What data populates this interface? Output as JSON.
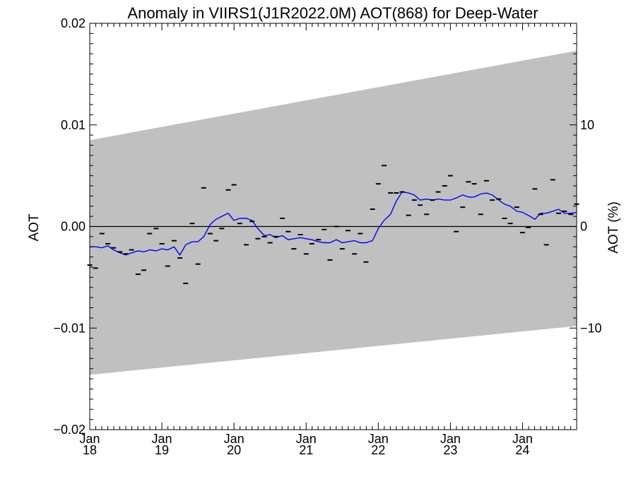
{
  "chart_data": {
    "type": "line",
    "title": "Anomaly in VIIRS1(J1R2022.0M) AOT(868) for Deep-Water",
    "ylabel": "AOT",
    "y2label": "AOT (%)",
    "xlim": [
      2018.0,
      2024.75
    ],
    "ylim": [
      -0.02,
      0.02
    ],
    "y2lim": [
      -20,
      20
    ],
    "yticks": [
      {
        "v": 0.02,
        "label": "0.02"
      },
      {
        "v": 0.01,
        "label": "0.01"
      },
      {
        "v": 0.0,
        "label": "0.00"
      },
      {
        "v": -0.01,
        "label": "−0.01"
      },
      {
        "v": -0.02,
        "label": "−0.02"
      }
    ],
    "y2ticks": [
      {
        "v": 10,
        "label": "10"
      },
      {
        "v": 0,
        "label": "0"
      },
      {
        "v": -10,
        "label": "−10"
      }
    ],
    "xticks": [
      {
        "x": 2018,
        "month": "Jan",
        "year": "18"
      },
      {
        "x": 2019,
        "month": "Jan",
        "year": "19"
      },
      {
        "x": 2020,
        "month": "Jan",
        "year": "20"
      },
      {
        "x": 2021,
        "month": "Jan",
        "year": "21"
      },
      {
        "x": 2022,
        "month": "Jan",
        "year": "22"
      },
      {
        "x": 2023,
        "month": "Jan",
        "year": "23"
      },
      {
        "x": 2024,
        "month": "Jan",
        "year": "24"
      }
    ],
    "band": {
      "x": [
        2018.0,
        2024.75
      ],
      "upper": [
        0.0085,
        0.0173
      ],
      "lower": [
        -0.0146,
        -0.0098
      ],
      "color": "#c0c0c0"
    },
    "zero_line": 0,
    "monthly_anomaly": {
      "color": "#000000",
      "x": [
        2018.0,
        2018.08,
        2018.17,
        2018.25,
        2018.33,
        2018.42,
        2018.5,
        2018.58,
        2018.67,
        2018.75,
        2018.83,
        2018.92,
        2019.0,
        2019.08,
        2019.17,
        2019.25,
        2019.33,
        2019.42,
        2019.5,
        2019.58,
        2019.67,
        2019.75,
        2019.83,
        2019.92,
        2020.0,
        2020.08,
        2020.17,
        2020.25,
        2020.33,
        2020.42,
        2020.5,
        2020.58,
        2020.67,
        2020.75,
        2020.83,
        2020.92,
        2021.0,
        2021.08,
        2021.17,
        2021.25,
        2021.33,
        2021.42,
        2021.5,
        2021.58,
        2021.67,
        2021.75,
        2021.83,
        2021.92,
        2022.0,
        2022.08,
        2022.17,
        2022.25,
        2022.33,
        2022.42,
        2022.5,
        2022.58,
        2022.67,
        2022.75,
        2022.83,
        2022.92,
        2023.0,
        2023.08,
        2023.17,
        2023.25,
        2023.33,
        2023.42,
        2023.5,
        2023.58,
        2023.67,
        2023.75,
        2023.83,
        2023.92,
        2024.0,
        2024.08,
        2024.17,
        2024.25,
        2024.33,
        2024.42,
        2024.5,
        2024.58,
        2024.67,
        2024.75
      ],
      "y": [
        -0.0038,
        -0.0041,
        -0.0007,
        -0.0017,
        -0.0021,
        -0.0025,
        -0.0027,
        -0.0023,
        -0.0047,
        -0.0043,
        -0.0007,
        -0.0002,
        -0.0017,
        -0.0039,
        -0.0014,
        -0.0031,
        -0.0056,
        0.0003,
        -0.0037,
        0.0038,
        -0.0007,
        -0.0014,
        -0.0002,
        0.0036,
        0.0041,
        0.0003,
        -0.0018,
        0.0005,
        -0.0012,
        -0.001,
        -0.0016,
        -0.001,
        0.0008,
        -0.0005,
        -0.0022,
        -0.0008,
        -0.0027,
        -0.0017,
        -0.0013,
        -0.0003,
        -0.0033,
        0.0,
        -0.0022,
        -0.0004,
        -0.0027,
        -0.0007,
        -0.0035,
        0.0017,
        0.0042,
        0.006,
        0.0033,
        0.0033,
        0.0034,
        0.0011,
        0.0026,
        0.0021,
        0.0012,
        0.0026,
        0.0034,
        0.004,
        0.005,
        -0.0005,
        0.0019,
        0.0044,
        0.0042,
        0.0012,
        0.0045,
        0.0026,
        0.0027,
        0.0008,
        0.0003,
        0.0019,
        -0.0006,
        -0.0001,
        0.0037,
        0.0012,
        -0.0018,
        0.0046,
        0.0013,
        0.0015,
        0.0012,
        0.0022
      ]
    },
    "running_mean": {
      "color": "#0000ff",
      "x": [
        2018.0,
        2018.08,
        2018.17,
        2018.25,
        2018.33,
        2018.42,
        2018.5,
        2018.58,
        2018.67,
        2018.75,
        2018.83,
        2018.92,
        2019.0,
        2019.08,
        2019.17,
        2019.25,
        2019.33,
        2019.42,
        2019.5,
        2019.58,
        2019.67,
        2019.75,
        2019.83,
        2019.92,
        2020.0,
        2020.08,
        2020.17,
        2020.25,
        2020.33,
        2020.42,
        2020.5,
        2020.58,
        2020.67,
        2020.75,
        2020.83,
        2020.92,
        2021.0,
        2021.08,
        2021.17,
        2021.25,
        2021.33,
        2021.42,
        2021.5,
        2021.58,
        2021.67,
        2021.75,
        2021.83,
        2021.92,
        2022.0,
        2022.08,
        2022.17,
        2022.25,
        2022.33,
        2022.42,
        2022.5,
        2022.58,
        2022.67,
        2022.75,
        2022.83,
        2022.92,
        2023.0,
        2023.08,
        2023.17,
        2023.25,
        2023.33,
        2023.42,
        2023.5,
        2023.58,
        2023.67,
        2023.75,
        2023.83,
        2023.92,
        2024.0,
        2024.08,
        2024.17,
        2024.25,
        2024.33,
        2024.42,
        2024.5,
        2024.58,
        2024.67,
        2024.75
      ],
      "y": [
        -0.002,
        -0.002,
        -0.0021,
        -0.0019,
        -0.0023,
        -0.0026,
        -0.0028,
        -0.0026,
        -0.0024,
        -0.0025,
        -0.0023,
        -0.0024,
        -0.0022,
        -0.0023,
        -0.002,
        -0.0028,
        -0.0018,
        -0.0015,
        -0.0015,
        -0.001,
        0.0002,
        0.0007,
        0.001,
        0.0013,
        0.0006,
        0.0008,
        0.0008,
        0.0006,
        -0.0002,
        -0.0009,
        -0.0008,
        -0.0011,
        -0.0009,
        -0.0013,
        -0.0012,
        -0.0011,
        -0.0012,
        -0.0013,
        -0.0015,
        -0.0016,
        -0.0016,
        -0.0013,
        -0.0016,
        -0.0015,
        -0.0014,
        -0.0016,
        -0.0016,
        -0.0014,
        -0.0002,
        0.0006,
        0.0012,
        0.0025,
        0.0034,
        0.0033,
        0.0031,
        0.0026,
        0.0027,
        0.0026,
        0.0027,
        0.0026,
        0.0026,
        0.0028,
        0.0031,
        0.0029,
        0.0029,
        0.0032,
        0.0033,
        0.0031,
        0.0026,
        0.0022,
        0.002,
        0.0015,
        0.0014,
        0.0011,
        0.0007,
        0.0013,
        0.0013,
        0.0015,
        0.0017,
        0.0013,
        0.0013,
        0.0014
      ]
    }
  }
}
